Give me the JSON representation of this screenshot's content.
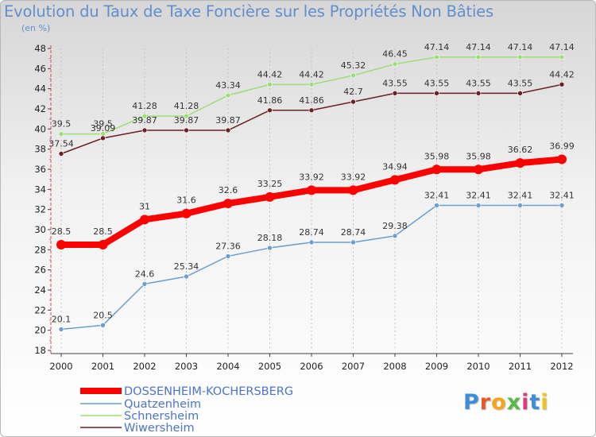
{
  "header": {
    "title": "Evolution du Taux de Taxe Foncière sur les Propriétés Non Bâties",
    "subtitle": "(en %)"
  },
  "logo": {
    "text": "Proxiti",
    "colors": [
      "#3c8ed8",
      "#e8572a",
      "#f2a51d",
      "#56b948",
      "#d93e7a",
      "#3c8ed8",
      "#f2c21d"
    ]
  },
  "chart_data": {
    "type": "line",
    "x": [
      "2000",
      "2001",
      "2002",
      "2003",
      "2004",
      "2005",
      "2006",
      "2007",
      "2008",
      "2009",
      "2010",
      "2011",
      "2012"
    ],
    "ylim": [
      18,
      48
    ],
    "yticks": [
      18,
      20,
      22,
      24,
      26,
      28,
      30,
      32,
      34,
      36,
      38,
      40,
      42,
      44,
      46,
      48
    ],
    "grid": "vertical-dashed",
    "legend_position": "bottom",
    "series": [
      {
        "name": "DOSSENHEIM-KOCHERSBERG",
        "color": "#ff0000",
        "values": [
          28.5,
          28.5,
          31,
          31.6,
          32.6,
          33.25,
          33.92,
          33.92,
          34.94,
          35.98,
          35.98,
          36.62,
          36.99
        ],
        "labels": [
          "28.5",
          "28.5",
          "31",
          "31.6",
          "32.6",
          "33.25",
          "33.92",
          "33.92",
          "34.94",
          "35.98",
          "35.98",
          "36.62",
          "36.99"
        ]
      },
      {
        "name": "Quatzenheim",
        "color": "#6a9fd0",
        "values": [
          20.1,
          20.5,
          24.6,
          25.34,
          27.36,
          28.18,
          28.74,
          28.74,
          29.38,
          32.41,
          32.41,
          32.41,
          32.41
        ],
        "labels": [
          "20.1",
          "20.5",
          "24.6",
          "25.34",
          "27.36",
          "28.18",
          "28.74",
          "28.74",
          "29.38",
          "32.41",
          "32.41",
          "32.41",
          "32.41"
        ]
      },
      {
        "name": "Schnersheim",
        "color": "#99e072",
        "values": [
          39.5,
          39.5,
          41.28,
          41.28,
          43.34,
          44.42,
          44.42,
          45.32,
          46.45,
          47.14,
          47.14,
          47.14,
          47.14
        ],
        "labels": [
          "39.5",
          "39.5",
          "41.28",
          "41.28",
          "43.34",
          "44.42",
          "44.42",
          "45.32",
          "46.45",
          "47.14",
          "47.14",
          "47.14",
          "47.14"
        ]
      },
      {
        "name": "Wiwersheim",
        "color": "#6b1f26",
        "values": [
          37.54,
          39.09,
          39.87,
          39.87,
          39.87,
          41.86,
          41.86,
          42.7,
          43.55,
          43.55,
          43.55,
          43.55,
          44.42
        ],
        "labels": [
          "37.54",
          "39.09",
          "39.87",
          "39.87",
          "39.87",
          "41.86",
          "41.86",
          "42.7",
          "43.55",
          "43.55",
          "43.55",
          "43.55",
          "44.42"
        ]
      }
    ]
  }
}
